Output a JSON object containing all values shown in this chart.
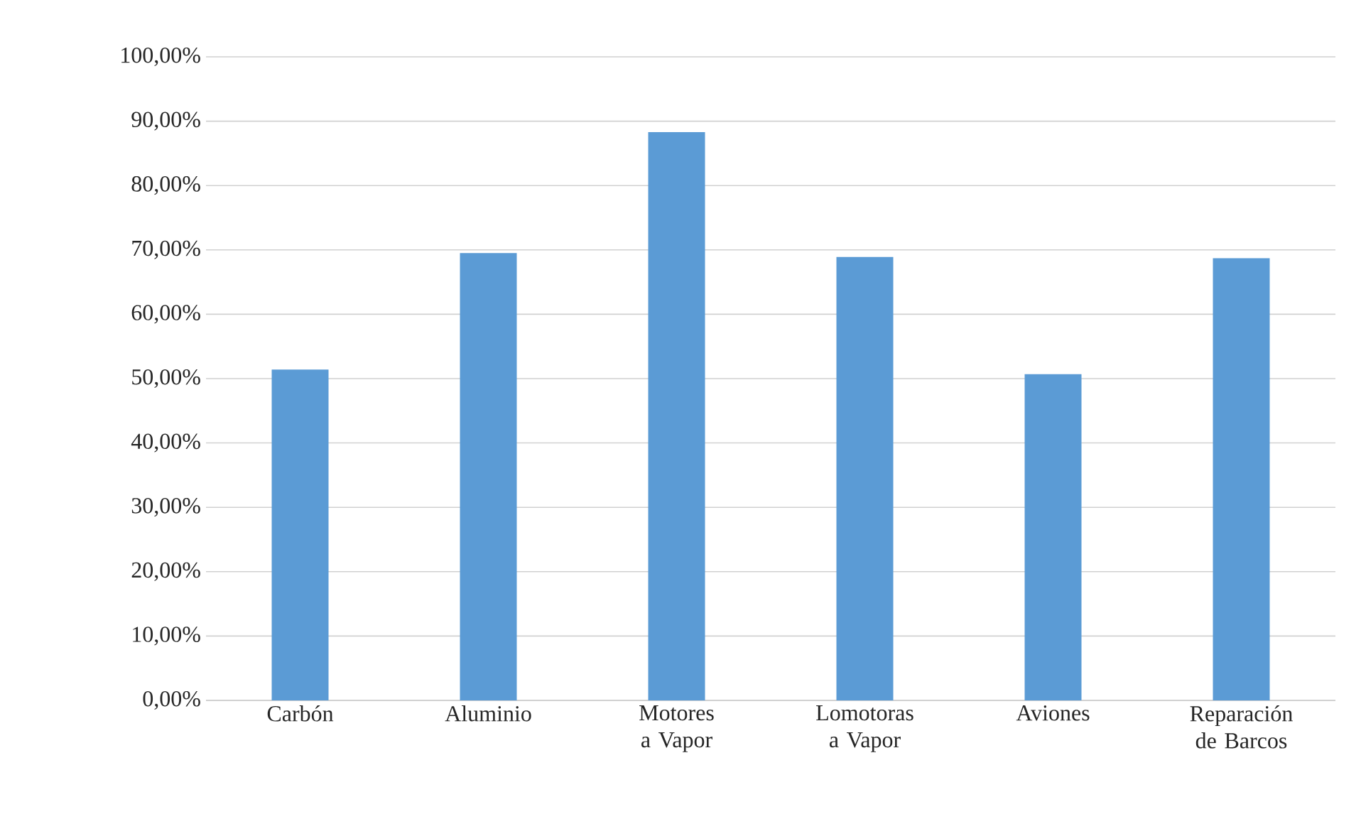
{
  "chart_data": {
    "type": "bar",
    "categories": [
      "Carbón",
      "Aluminio",
      "Motores a Vapor",
      "Lomotoras a Vapor",
      "Aviones",
      "Reparación de Barcos"
    ],
    "values": [
      51.4,
      69.5,
      88.3,
      68.9,
      50.7,
      68.7
    ],
    "color": "#5b9bd5",
    "ylim": [
      0,
      100
    ],
    "yticks": [
      {
        "value": 0,
        "label": "0,00%"
      },
      {
        "value": 10,
        "label": "10,00%"
      },
      {
        "value": 20,
        "label": "20,00%"
      },
      {
        "value": 30,
        "label": "30,00%"
      },
      {
        "value": 40,
        "label": "40,00%"
      },
      {
        "value": 50,
        "label": "50,00%"
      },
      {
        "value": 60,
        "label": "60,00%"
      },
      {
        "value": 70,
        "label": "70,00%"
      },
      {
        "value": 80,
        "label": "80,00%"
      },
      {
        "value": 90,
        "label": "90,00%"
      },
      {
        "value": 100,
        "label": "100,00%"
      }
    ],
    "grid": "y"
  }
}
